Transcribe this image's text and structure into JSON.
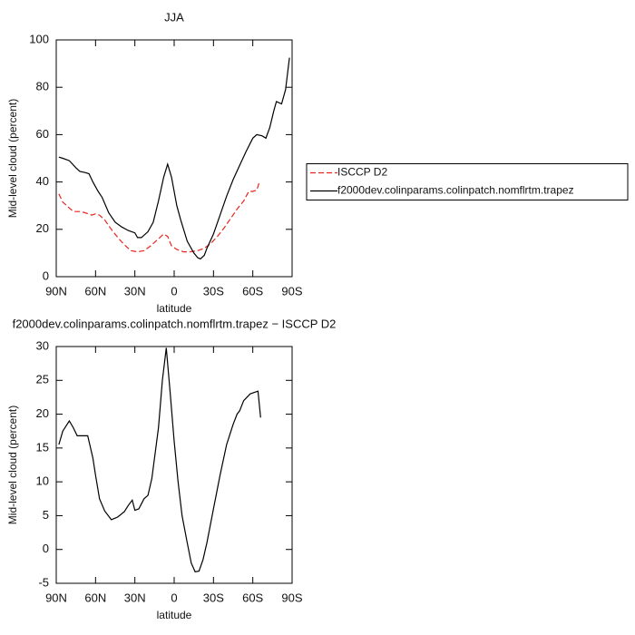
{
  "chart_data": [
    {
      "type": "line",
      "title": "JJA",
      "ylabel": "Mid-level cloud (percent)",
      "xlabel": "latitude",
      "xlim": [
        90,
        -90
      ],
      "xticks": [
        {
          "value": 90,
          "label": "90N"
        },
        {
          "value": 60,
          "label": "60N"
        },
        {
          "value": 30,
          "label": "30N"
        },
        0,
        {
          "value": -30,
          "label": "30S"
        },
        {
          "value": -60,
          "label": "60S"
        },
        {
          "value": -90,
          "label": "90S"
        }
      ],
      "ylim": [
        0,
        100
      ],
      "yticks": [
        0,
        20,
        40,
        60,
        80,
        100
      ],
      "legend": "right",
      "series": [
        {
          "name": "ISCCP D2",
          "color": "#e8251f",
          "line_style": "dashed",
          "x": [
            88,
            85,
            80,
            77,
            72,
            68,
            63,
            60,
            57,
            53,
            48,
            43,
            38,
            33,
            28,
            23,
            18,
            12,
            8,
            5,
            2,
            -2,
            -7,
            -12,
            -18,
            -23,
            -28,
            -33,
            -38,
            -43,
            -48,
            -53,
            -57,
            -60,
            -63,
            -65
          ],
          "values": [
            35,
            31.5,
            29,
            27.5,
            27.5,
            27,
            26,
            26.5,
            26,
            24,
            20,
            16.5,
            13.5,
            11,
            10.5,
            11,
            13,
            16,
            18,
            17,
            13,
            11.5,
            10.5,
            10.5,
            11,
            12,
            14,
            17,
            20.5,
            24.5,
            28.5,
            32,
            36,
            36,
            36.5,
            40
          ]
        },
        {
          "name": "f2000dev.colinparams.colinpatch.nomflrtm.trapez",
          "color": "#000000",
          "line_style": "solid",
          "x": [
            88,
            85,
            80,
            75,
            72,
            68,
            65,
            62,
            58,
            55,
            50,
            45,
            40,
            35,
            30,
            28,
            25,
            20,
            16,
            12,
            8,
            5,
            2,
            -2,
            -5,
            -10,
            -15,
            -18,
            -20,
            -23,
            -25,
            -30,
            -35,
            -40,
            -45,
            -50,
            -55,
            -60,
            -63,
            -67,
            -70,
            -73,
            -76,
            -78,
            -82,
            -85,
            -88
          ],
          "values": [
            50.5,
            50,
            49,
            46,
            44.5,
            44,
            43.5,
            40,
            36,
            33.5,
            27,
            23,
            21,
            19.5,
            18.5,
            16.5,
            16.5,
            19,
            23,
            32,
            42,
            47.5,
            42,
            30,
            24,
            15,
            10,
            8,
            7.5,
            9,
            12,
            18,
            26,
            34,
            41,
            47,
            53,
            58.5,
            60,
            59.5,
            58.5,
            63,
            70,
            74,
            73,
            79,
            92.5
          ]
        }
      ]
    },
    {
      "type": "line",
      "title": "f2000dev.colinparams.colinpatch.nomflrtm.trapez − ISCCP D2",
      "ylabel": "Mid-level cloud (percent)",
      "xlabel": "latitude",
      "xlim": [
        90,
        -90
      ],
      "xticks": [
        {
          "value": 90,
          "label": "90N"
        },
        {
          "value": 60,
          "label": "60N"
        },
        {
          "value": 30,
          "label": "30N"
        },
        0,
        {
          "value": -30,
          "label": "30S"
        },
        {
          "value": -60,
          "label": "60S"
        },
        {
          "value": -90,
          "label": "90S"
        }
      ],
      "ylim": [
        -5,
        30
      ],
      "yticks": [
        -5,
        0,
        5,
        10,
        15,
        20,
        25,
        30
      ],
      "series": [
        {
          "color": "#000000",
          "line_style": "solid",
          "x": [
            88,
            85,
            80,
            77,
            74,
            70,
            66,
            62,
            60,
            57,
            53,
            48,
            43,
            38,
            35,
            32,
            30,
            27,
            23,
            20,
            17,
            12,
            9,
            6,
            3,
            0,
            -3,
            -6,
            -10,
            -13,
            -16,
            -19,
            -22,
            -25,
            -30,
            -35,
            -40,
            -45,
            -48,
            -50,
            -53,
            -58,
            -64,
            -66
          ],
          "values": [
            15.5,
            17.5,
            19,
            18,
            16.8,
            16.8,
            16.8,
            13.5,
            11,
            7.5,
            5.7,
            4.4,
            4.8,
            5.6,
            6.5,
            7.3,
            5.8,
            6,
            7.5,
            8,
            10.5,
            18,
            25,
            29.8,
            23,
            16,
            10,
            5,
            1,
            -2,
            -3.3,
            -3.2,
            -1.5,
            1,
            6,
            11,
            15.5,
            18.5,
            20,
            20.5,
            22,
            23,
            23.4,
            19.5
          ]
        }
      ]
    }
  ]
}
